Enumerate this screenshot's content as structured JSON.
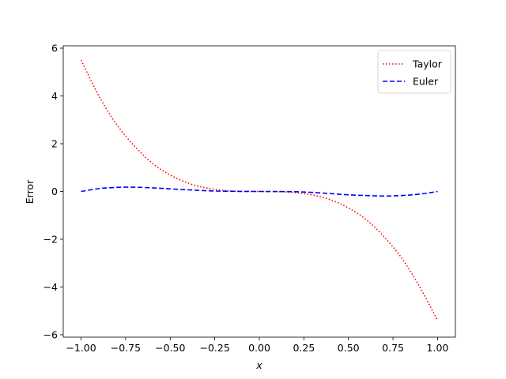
{
  "chart_data": {
    "type": "line",
    "title": "",
    "xlabel": "x",
    "ylabel": "Error",
    "xlim": [
      -1.1,
      1.1
    ],
    "ylim": [
      -6.1,
      6.1
    ],
    "xticks": [
      -1.0,
      -0.75,
      -0.5,
      -0.25,
      0.0,
      0.25,
      0.5,
      0.75,
      1.0
    ],
    "xtick_labels": [
      "−1.00",
      "−0.75",
      "−0.50",
      "−0.25",
      "0.00",
      "0.25",
      "0.50",
      "0.75",
      "1.00"
    ],
    "yticks": [
      -6,
      -4,
      -2,
      0,
      2,
      4,
      6
    ],
    "ytick_labels": [
      "−6",
      "−4",
      "−2",
      "0",
      "2",
      "4",
      "6"
    ],
    "grid": false,
    "legend_position": "top-right",
    "x": [
      -1.0,
      -0.9,
      -0.8,
      -0.7,
      -0.6,
      -0.5,
      -0.4,
      -0.3,
      -0.2,
      -0.1,
      0.0,
      0.1,
      0.2,
      0.3,
      0.4,
      0.5,
      0.6,
      0.7,
      0.8,
      0.9,
      1.0
    ],
    "series": [
      {
        "name": "Taylor",
        "color": "#ff0000",
        "dash": "dotted",
        "values": [
          5.5,
          4.0,
          2.8,
          1.9,
          1.18,
          0.69,
          0.35,
          0.15,
          0.045,
          0.006,
          0.0,
          -0.006,
          -0.045,
          -0.15,
          -0.35,
          -0.69,
          -1.18,
          -1.9,
          -2.8,
          -4.0,
          -5.4
        ]
      },
      {
        "name": "Euler",
        "color": "#0000ff",
        "dash": "dashed",
        "values": [
          0.0,
          0.12,
          0.17,
          0.18,
          0.15,
          0.11,
          0.07,
          0.03,
          0.01,
          0.002,
          0.0,
          -0.002,
          -0.01,
          -0.04,
          -0.09,
          -0.14,
          -0.17,
          -0.19,
          -0.17,
          -0.11,
          0.0
        ]
      }
    ]
  }
}
